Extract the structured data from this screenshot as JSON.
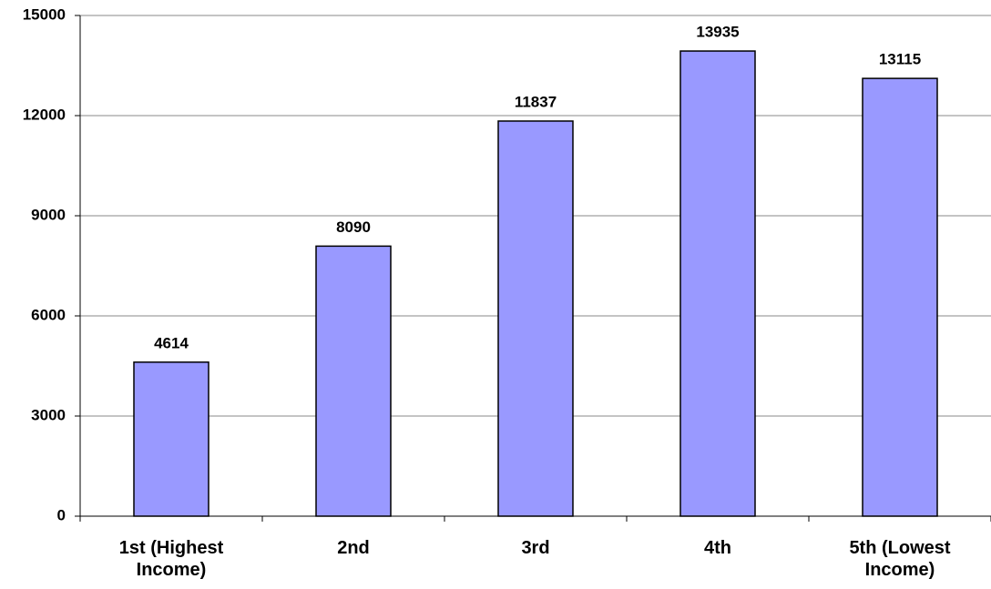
{
  "chart_data": {
    "type": "bar",
    "categories": [
      "1st (Highest Income)",
      "2nd",
      "3rd",
      "4th",
      "5th (Lowest Income)"
    ],
    "values": [
      4614,
      8090,
      11837,
      13935,
      13115
    ],
    "color": "#9999ff",
    "ylim": [
      0,
      15000
    ],
    "yticks": [
      0,
      3000,
      6000,
      9000,
      12000,
      15000
    ],
    "grid": true
  }
}
